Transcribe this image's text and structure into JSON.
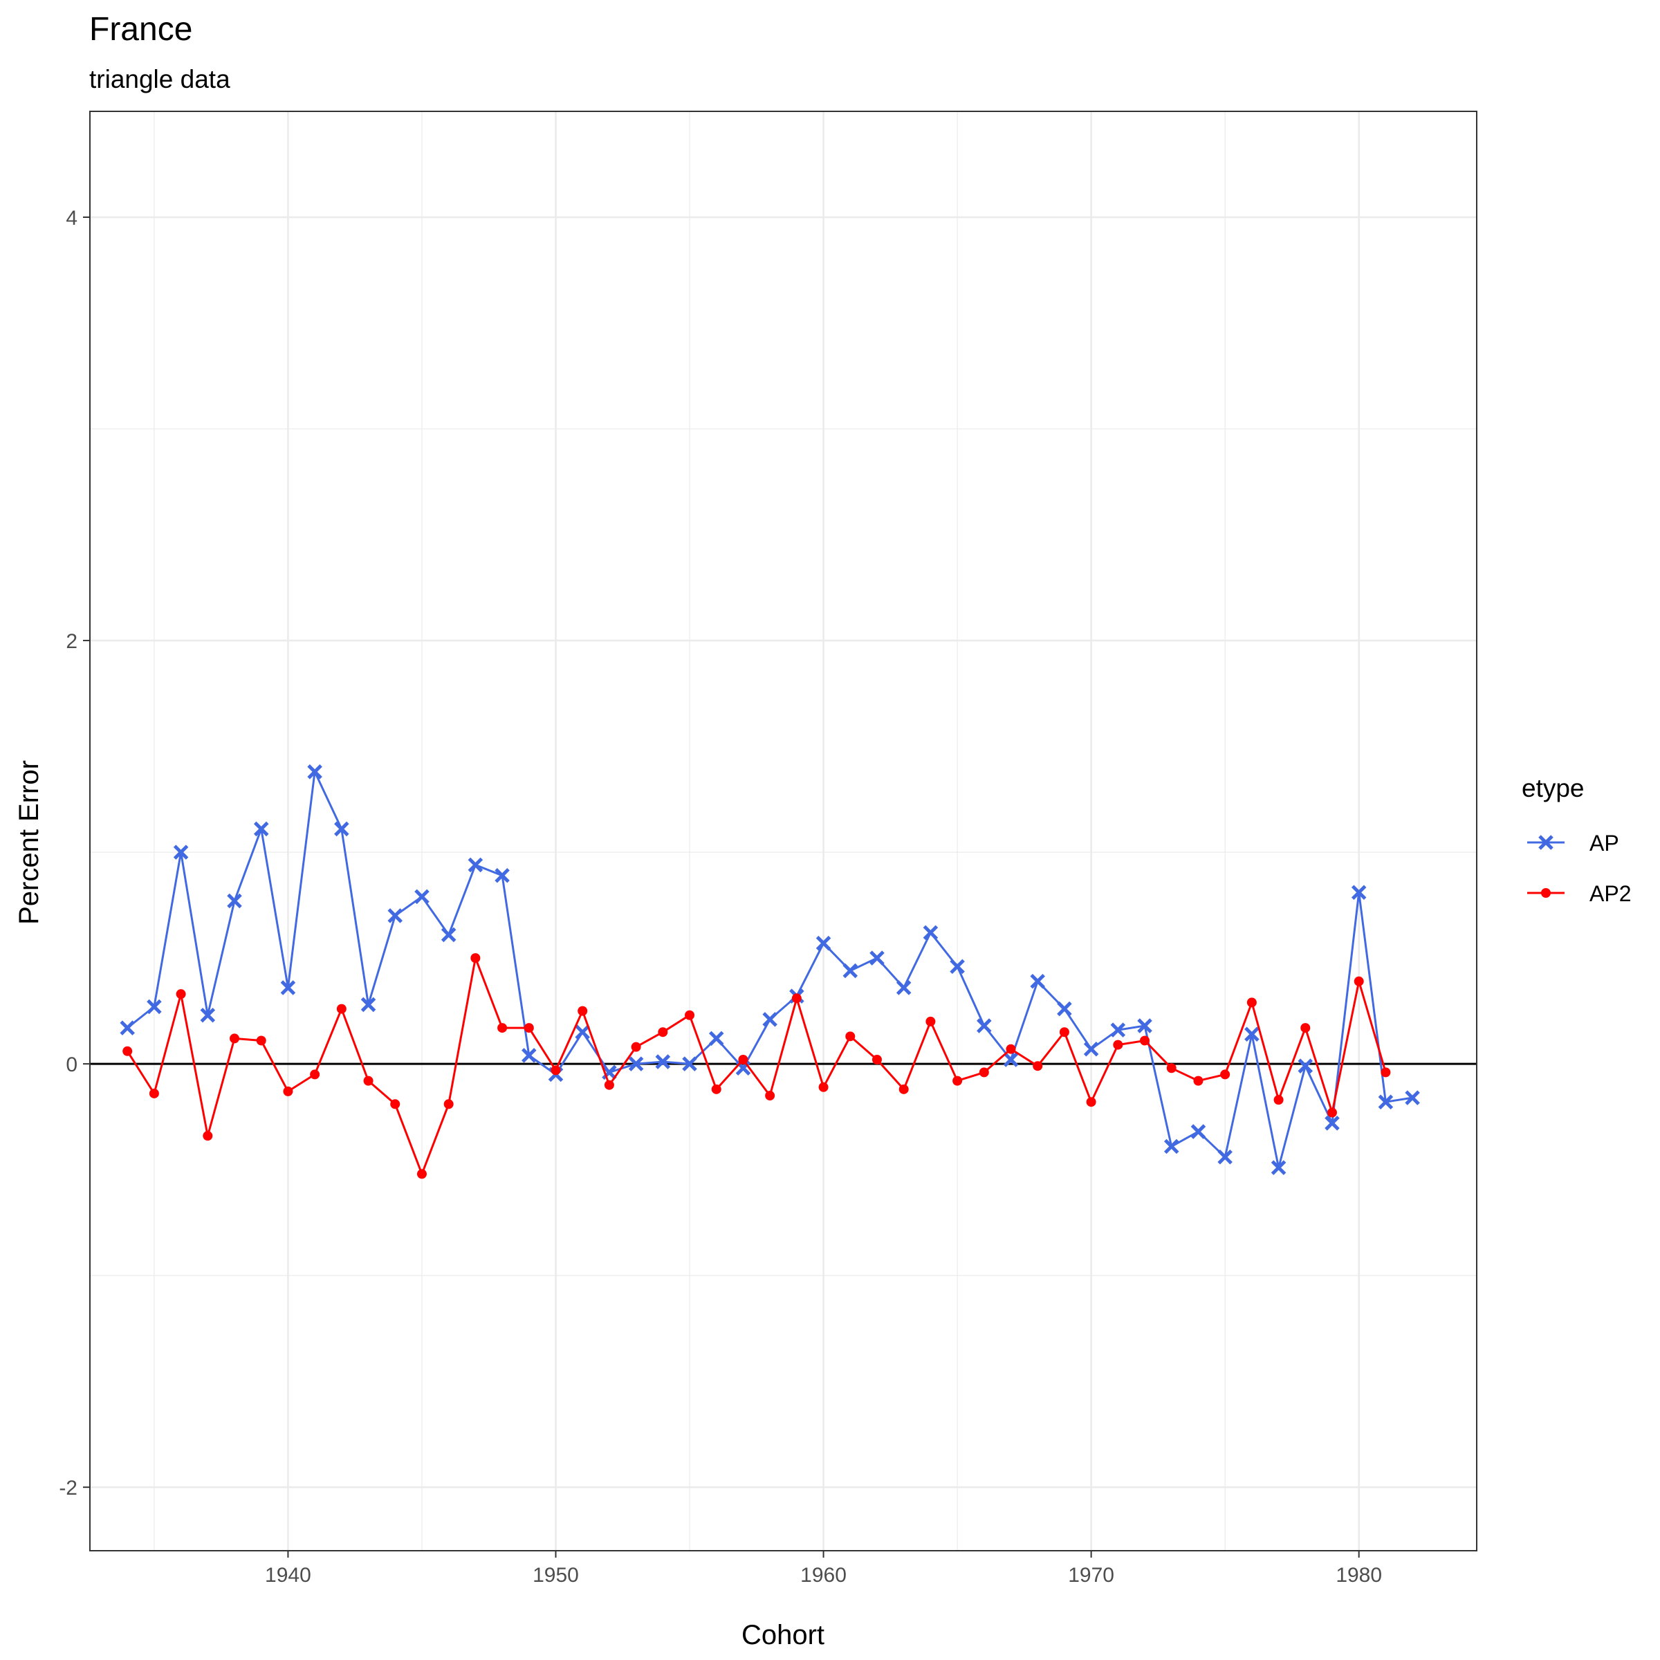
{
  "chart_data": {
    "type": "line",
    "title": "France",
    "subtitle": "triangle data",
    "xlabel": "Cohort",
    "ylabel": "Percent Error",
    "xlim": [
      1932.6,
      1984.4
    ],
    "ylim": [
      -2.3,
      4.5
    ],
    "x_ticks": [
      1940,
      1950,
      1960,
      1970,
      1980
    ],
    "y_ticks": [
      -2,
      0,
      2,
      4
    ],
    "x_tick_labels": [
      "1940",
      "1950",
      "1960",
      "1970",
      "1980"
    ],
    "y_tick_labels": [
      "-2",
      "0",
      "2",
      "4"
    ],
    "reference_line_y": 0,
    "grid": true,
    "legend": {
      "title": "etype",
      "position": "right",
      "entries": [
        {
          "label": "AP",
          "color": "#4169E1",
          "marker": "x"
        },
        {
          "label": "AP2",
          "color": "#FF0000",
          "marker": "circle"
        }
      ]
    },
    "series": [
      {
        "name": "AP",
        "color": "#4169E1",
        "marker": "x",
        "x": [
          1934,
          1935,
          1936,
          1937,
          1938,
          1939,
          1940,
          1941,
          1942,
          1943,
          1944,
          1945,
          1946,
          1947,
          1948,
          1949,
          1950,
          1951,
          1952,
          1953,
          1954,
          1955,
          1956,
          1957,
          1958,
          1959,
          1960,
          1961,
          1962,
          1963,
          1964,
          1965,
          1966,
          1967,
          1968,
          1969,
          1970,
          1971,
          1972,
          1973,
          1974,
          1975,
          1976,
          1977,
          1978,
          1979,
          1980,
          1981,
          1982
        ],
        "values": [
          0.17,
          0.27,
          1.0,
          0.23,
          0.77,
          1.11,
          0.36,
          1.38,
          1.11,
          0.28,
          0.7,
          0.79,
          0.61,
          0.94,
          0.89,
          0.04,
          -0.05,
          0.15,
          -0.04,
          0.0,
          0.01,
          0.0,
          0.12,
          -0.02,
          0.21,
          0.32,
          0.57,
          0.44,
          0.5,
          0.36,
          0.62,
          0.46,
          0.18,
          0.02,
          0.39,
          0.26,
          0.07,
          0.16,
          0.18,
          -0.39,
          -0.32,
          -0.44,
          0.14,
          -0.49,
          -0.01,
          -0.28,
          0.81,
          -0.18,
          -0.16
        ]
      },
      {
        "name": "AP2",
        "color": "#FF0000",
        "marker": "circle",
        "x": [
          1934,
          1935,
          1936,
          1937,
          1938,
          1939,
          1940,
          1941,
          1942,
          1943,
          1944,
          1945,
          1946,
          1947,
          1948,
          1949,
          1950,
          1951,
          1952,
          1953,
          1954,
          1955,
          1956,
          1957,
          1958,
          1959,
          1960,
          1961,
          1962,
          1963,
          1964,
          1965,
          1966,
          1967,
          1968,
          1969,
          1970,
          1971,
          1972,
          1973,
          1974,
          1975,
          1976,
          1977,
          1978,
          1979,
          1980,
          1981
        ],
        "values": [
          0.06,
          -0.14,
          0.33,
          -0.34,
          0.12,
          0.11,
          -0.13,
          -0.05,
          0.26,
          -0.08,
          -0.19,
          -0.52,
          -0.19,
          0.5,
          0.17,
          0.17,
          -0.03,
          0.25,
          -0.1,
          0.08,
          0.15,
          0.23,
          -0.12,
          0.02,
          -0.15,
          0.31,
          -0.11,
          0.13,
          0.02,
          -0.12,
          0.2,
          -0.08,
          -0.04,
          0.07,
          -0.01,
          0.15,
          -0.18,
          0.09,
          0.11,
          -0.02,
          -0.08,
          -0.05,
          0.29,
          -0.17,
          0.17,
          -0.23,
          0.39,
          -0.04
        ]
      }
    ]
  }
}
